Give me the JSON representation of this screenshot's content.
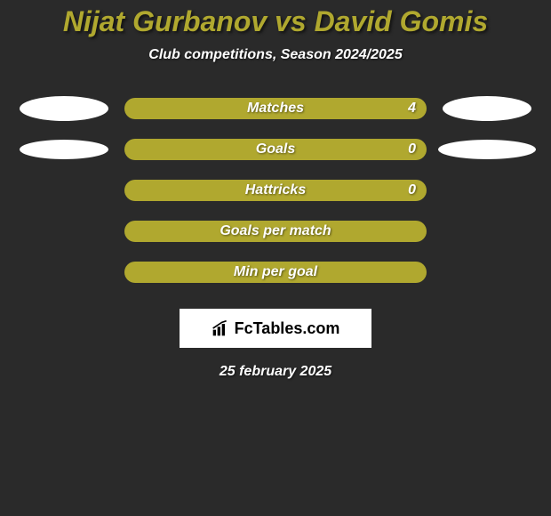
{
  "title": {
    "text": "Nijat Gurbanov vs David Gomis",
    "color": "#b0a82f",
    "fontsize": 32
  },
  "subtitle": {
    "text": "Club competitions, Season 2024/2025",
    "fontsize": 16
  },
  "bar_color": "#b0a82f",
  "ellipse_color": "#ffffff",
  "background_color": "#2a2a2a",
  "label_fontsize": 16,
  "value_fontsize": 16,
  "rows": [
    {
      "label": "Matches",
      "value": "4",
      "left_ellipse_w": 100,
      "left_ellipse_h": 28,
      "right_ellipse_w": 100,
      "right_ellipse_h": 28
    },
    {
      "label": "Goals",
      "value": "0",
      "left_ellipse_w": 100,
      "left_ellipse_h": 22,
      "right_ellipse_w": 110,
      "right_ellipse_h": 22
    },
    {
      "label": "Hattricks",
      "value": "0",
      "left_ellipse_w": 0,
      "left_ellipse_h": 0,
      "right_ellipse_w": 0,
      "right_ellipse_h": 0
    },
    {
      "label": "Goals per match",
      "value": "",
      "left_ellipse_w": 0,
      "left_ellipse_h": 0,
      "right_ellipse_w": 0,
      "right_ellipse_h": 0
    },
    {
      "label": "Min per goal",
      "value": "",
      "left_ellipse_w": 0,
      "left_ellipse_h": 0,
      "right_ellipse_w": 0,
      "right_ellipse_h": 0
    }
  ],
  "logo": {
    "text": "FcTables.com",
    "fontsize": 18
  },
  "date": {
    "text": "25 february 2025",
    "fontsize": 16
  }
}
